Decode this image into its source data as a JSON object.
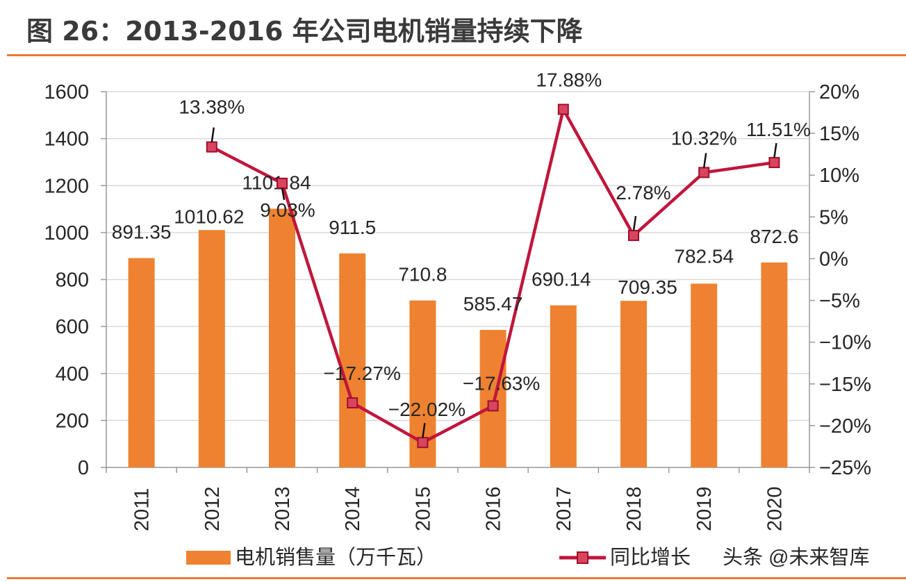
{
  "title": "图 26：2013-2016 年公司电机销量持续下降",
  "watermark": "头条 @未来智库",
  "colors": {
    "bar": "#ee8230",
    "line": "#c0163c",
    "marker": "#d9455e",
    "grid": "#d9d9d9",
    "rule": "#e8793a"
  },
  "chart_data": {
    "type": "bar+line",
    "categories": [
      "2011",
      "2012",
      "2013",
      "2014",
      "2015",
      "2016",
      "2017",
      "2018",
      "2019",
      "2020"
    ],
    "series": [
      {
        "name": "电机销售量（万千瓦）",
        "type": "bar",
        "axis": "left",
        "values": [
          891.35,
          1010.62,
          1101.84,
          911.5,
          710.8,
          585.47,
          690.14,
          709.35,
          782.54,
          872.6
        ],
        "labels": [
          "891.35",
          "1010.62",
          "1101.84",
          "911.5",
          "710.8",
          "585.47",
          "690.14",
          "709.35",
          "782.54",
          "872.6"
        ]
      },
      {
        "name": "同比增长",
        "type": "line",
        "axis": "right",
        "values": [
          null,
          13.38,
          9.03,
          -17.27,
          -22.02,
          -17.63,
          17.88,
          2.78,
          10.32,
          11.51
        ],
        "labels": [
          "",
          "13.38%",
          "9.03%",
          "−17.27%",
          "−22.02%",
          "−17.63%",
          "17.88%",
          "2.78%",
          "10.32%",
          "11.51%"
        ]
      }
    ],
    "left_axis": {
      "range": [
        0,
        1600
      ],
      "ticks": [
        "0",
        "200",
        "400",
        "600",
        "800",
        "1000",
        "1200",
        "1400",
        "1600"
      ]
    },
    "right_axis": {
      "range": [
        -25,
        20
      ],
      "ticks": [
        "−25%",
        "−20%",
        "−15%",
        "−10%",
        "−5%",
        "0%",
        "5%",
        "10%",
        "15%",
        "20%"
      ]
    },
    "grid": true,
    "legend_position": "bottom",
    "legend": [
      "电机销售量（万千瓦）",
      "同比增长"
    ]
  }
}
